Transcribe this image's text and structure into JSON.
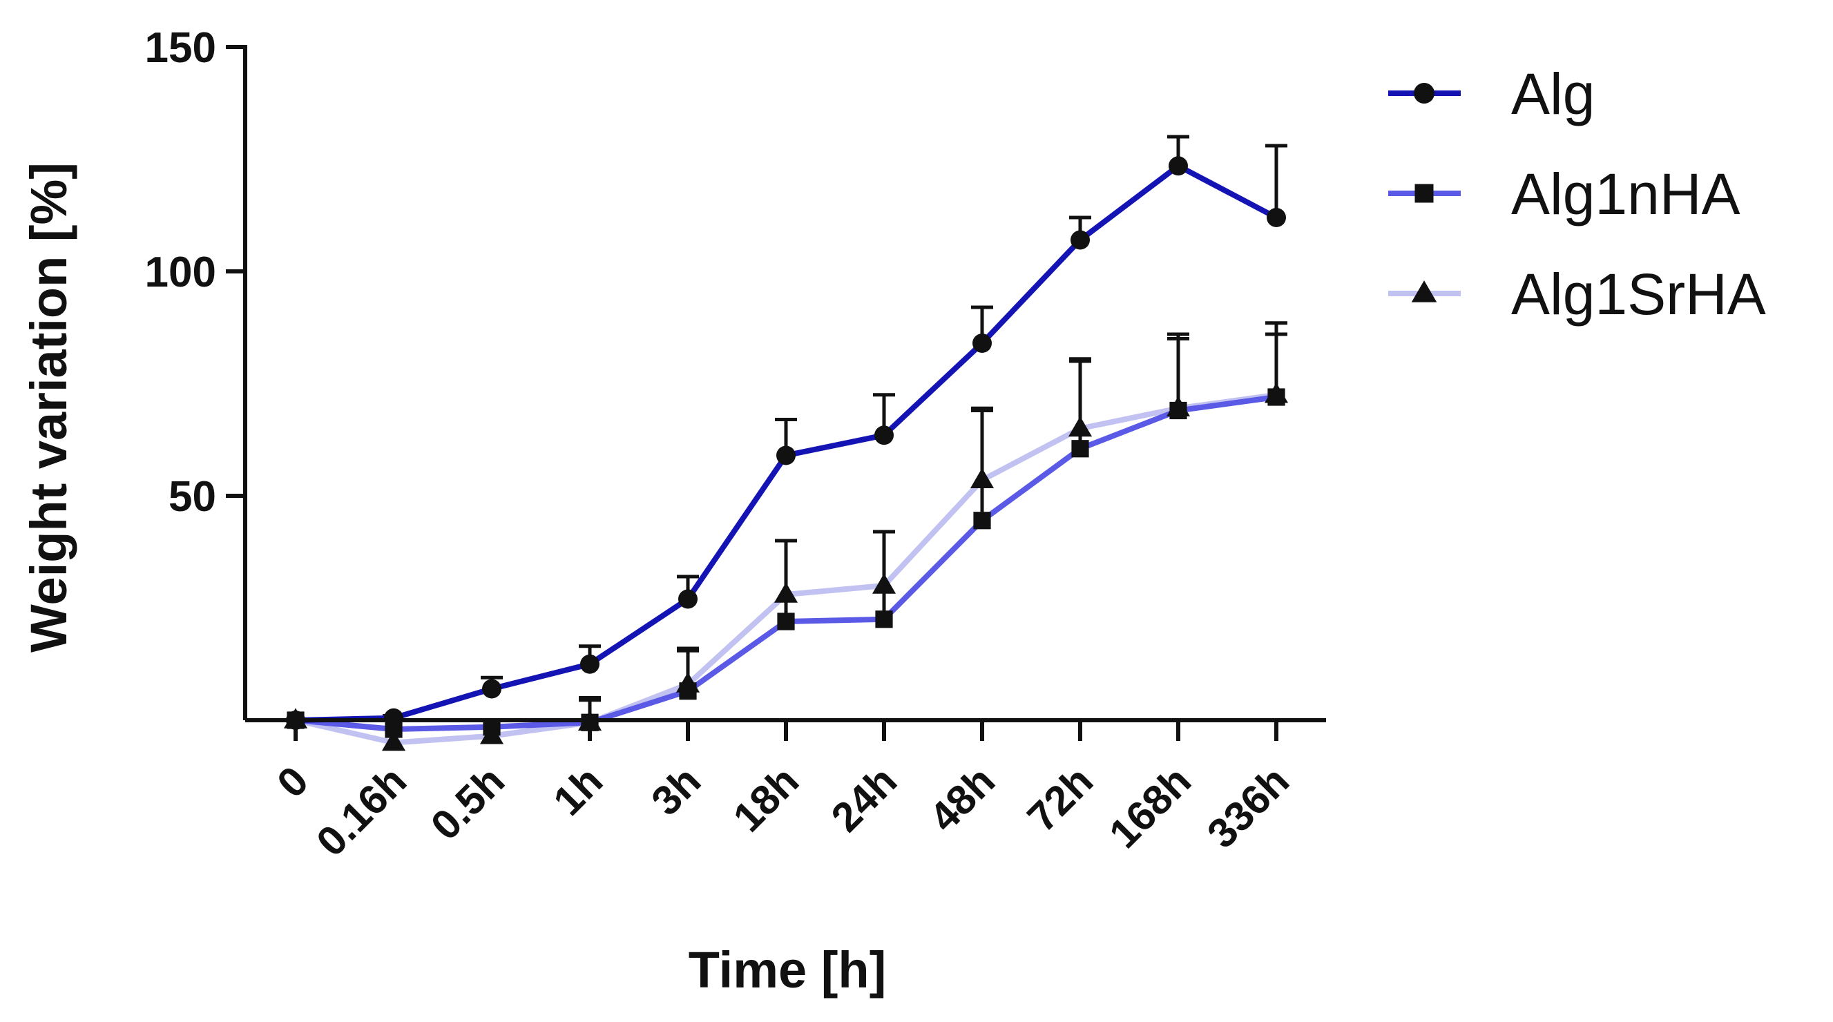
{
  "chart_data": {
    "type": "line",
    "title": "",
    "xlabel": "Time [h]",
    "ylabel": "Weight variation [%]",
    "categories": [
      "0",
      "0.16h",
      "0.5h",
      "1h",
      "3h",
      "18h",
      "24h",
      "48h",
      "72h",
      "168h",
      "336h"
    ],
    "ylim": [
      -10,
      150
    ],
    "yticks": [
      50,
      100,
      150
    ],
    "grid": false,
    "legend_position": "top-right",
    "series": [
      {
        "name": "Alg",
        "marker": "circle",
        "color": "#1414b4",
        "values": [
          0,
          0.5,
          7,
          12.5,
          27,
          59,
          63.5,
          84,
          107,
          123.5,
          112
        ],
        "errors": [
          0,
          0.5,
          2.5,
          4,
          5,
          8,
          9,
          8,
          5,
          6.5,
          16
        ]
      },
      {
        "name": "Alg1nHA",
        "marker": "square",
        "color": "#5a5ae6",
        "values": [
          0,
          -2,
          -1.5,
          -0.5,
          6.5,
          22,
          22.5,
          44.5,
          60.5,
          69,
          72
        ],
        "errors": [
          0,
          0,
          0,
          5,
          9.5,
          18,
          19.5,
          24.5,
          20,
          17,
          16.5
        ]
      },
      {
        "name": "Alg1SrHA",
        "marker": "triangle",
        "color": "#c2c2f2",
        "values": [
          0,
          -5,
          -3.5,
          -0.5,
          8,
          28,
          30,
          53.5,
          65,
          69.5,
          72.5
        ],
        "errors": [
          0,
          0,
          0,
          5.5,
          7.5,
          12,
          12,
          16,
          15,
          15.5,
          13.5
        ]
      }
    ]
  }
}
